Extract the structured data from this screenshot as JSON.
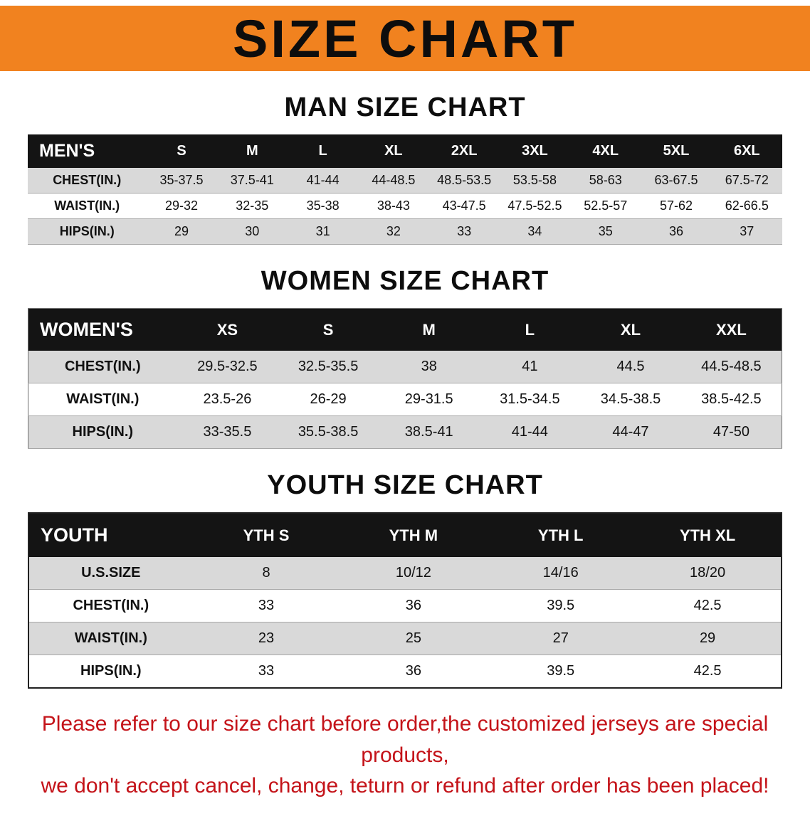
{
  "banner": {
    "title": "SIZE CHART",
    "bg_color": "#f1821f"
  },
  "sections": {
    "men": {
      "heading": "MAN SIZE CHART",
      "table": {
        "header": [
          "MEN'S",
          "S",
          "M",
          "L",
          "XL",
          "2XL",
          "3XL",
          "4XL",
          "5XL",
          "6XL"
        ],
        "rows": [
          [
            "CHEST(IN.)",
            "35-37.5",
            "37.5-41",
            "41-44",
            "44-48.5",
            "48.5-53.5",
            "53.5-58",
            "58-63",
            "63-67.5",
            "67.5-72"
          ],
          [
            "WAIST(IN.)",
            "29-32",
            "32-35",
            "35-38",
            "38-43",
            "43-47.5",
            "47.5-52.5",
            "52.5-57",
            "57-62",
            "62-66.5"
          ],
          [
            "HIPS(IN.)",
            "29",
            "30",
            "31",
            "32",
            "33",
            "34",
            "35",
            "36",
            "37"
          ]
        ]
      }
    },
    "women": {
      "heading": "WOMEN SIZE CHART",
      "table": {
        "header": [
          "WOMEN'S",
          "XS",
          "S",
          "M",
          "L",
          "XL",
          "XXL"
        ],
        "rows": [
          [
            "CHEST(IN.)",
            "29.5-32.5",
            "32.5-35.5",
            "38",
            "41",
            "44.5",
            "44.5-48.5"
          ],
          [
            "WAIST(IN.)",
            "23.5-26",
            "26-29",
            "29-31.5",
            "31.5-34.5",
            "34.5-38.5",
            "38.5-42.5"
          ],
          [
            "HIPS(IN.)",
            "33-35.5",
            "35.5-38.5",
            "38.5-41",
            "41-44",
            "44-47",
            "47-50"
          ]
        ]
      }
    },
    "youth": {
      "heading": "YOUTH SIZE CHART",
      "table": {
        "header": [
          "YOUTH",
          "YTH S",
          "YTH M",
          "YTH L",
          "YTH XL"
        ],
        "rows": [
          [
            "U.S.SIZE",
            "8",
            "10/12",
            "14/16",
            "18/20"
          ],
          [
            "CHEST(IN.)",
            "33",
            "36",
            "39.5",
            "42.5"
          ],
          [
            "WAIST(IN.)",
            "23",
            "25",
            "27",
            "29"
          ],
          [
            "HIPS(IN.)",
            "33",
            "36",
            "39.5",
            "42.5"
          ]
        ]
      }
    }
  },
  "footer": {
    "line1": "Please refer to our size chart before order,the customized jerseys are special products,",
    "line2": "we don't accept cancel, change, teturn or refund after order has been placed!",
    "text_color": "#c41319"
  }
}
